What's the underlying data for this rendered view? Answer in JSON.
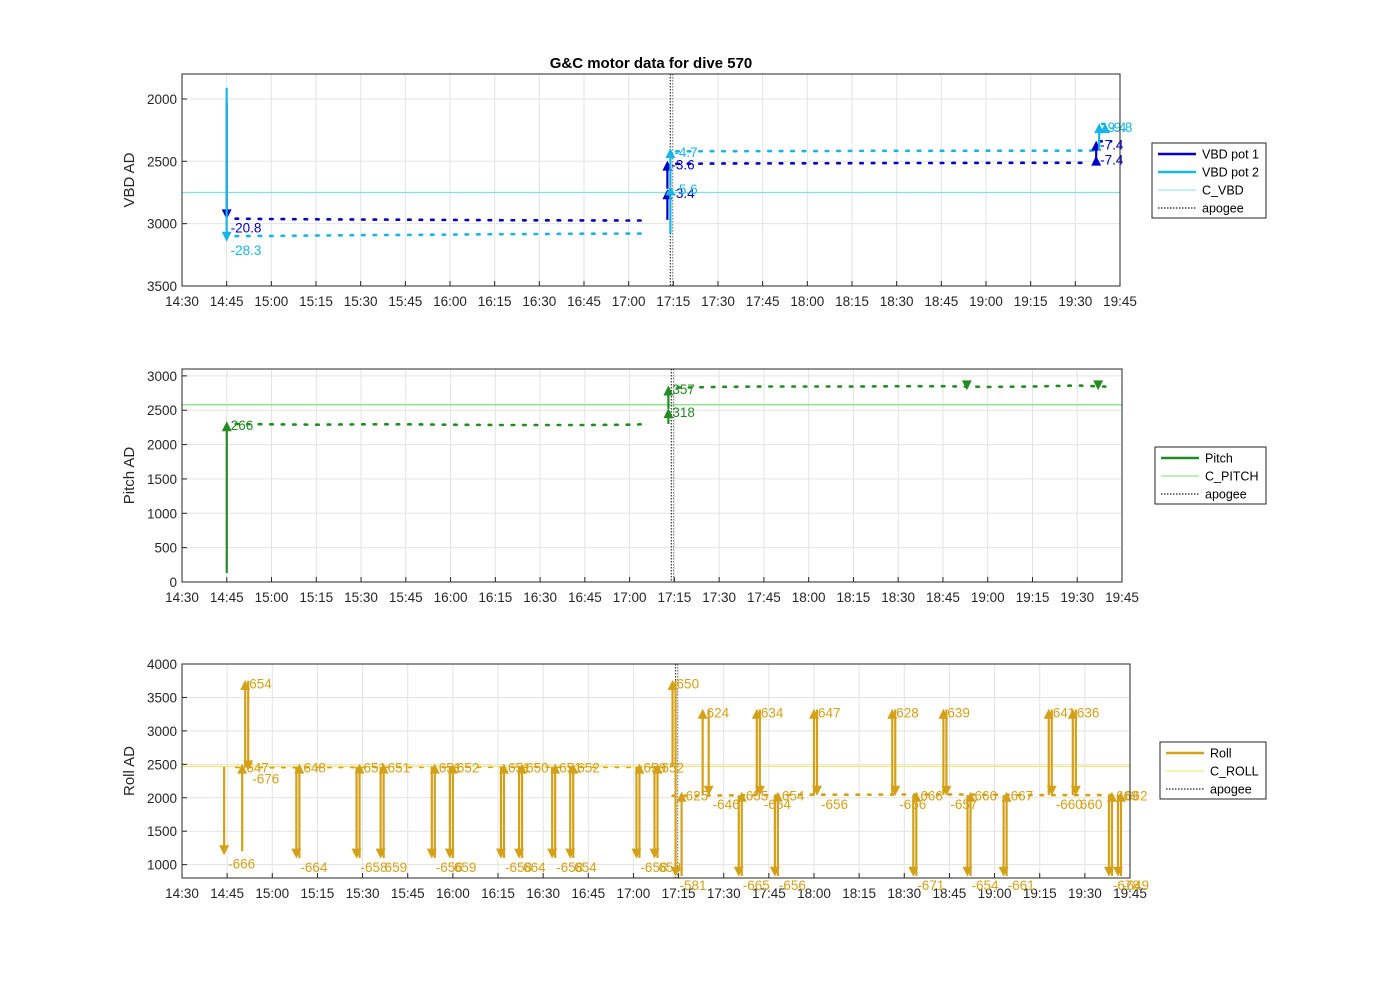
{
  "chart_data": [
    {
      "type": "line",
      "title": "G&C motor data for dive 570",
      "ylabel": "VBD AD",
      "xlabel": "",
      "y_reversed": true,
      "ylim": [
        1800,
        3500
      ],
      "xlim": [
        "14:30",
        "19:45"
      ],
      "x_ticks": [
        "14:30",
        "14:45",
        "15:00",
        "15:15",
        "15:30",
        "15:45",
        "16:00",
        "16:15",
        "16:30",
        "16:45",
        "17:00",
        "17:15",
        "17:30",
        "17:45",
        "18:00",
        "18:15",
        "18:30",
        "18:45",
        "19:00",
        "19:15",
        "19:30",
        "19:45"
      ],
      "y_ticks": [
        "2000",
        "2500",
        "3000",
        "3500"
      ],
      "grid": true,
      "legend_position": "right",
      "colors": {
        "VBD pot 1": "#0000c8",
        "VBD pot 2": "#19b4e6",
        "C_VBD": "#7fe0ea",
        "apogee": "#555555"
      },
      "series": [
        {
          "name": "VBD pot 1",
          "style": "dotted",
          "x": [
            "14:48",
            "15:00",
            "15:15",
            "15:30",
            "15:45",
            "16:00",
            "16:15",
            "16:30",
            "16:45",
            "17:00",
            "17:04"
          ],
          "y": [
            2960,
            2963,
            2965,
            2967,
            2968,
            2970,
            2972,
            2973,
            2974,
            2975,
            2975
          ]
        },
        {
          "name": "VBD pot 1",
          "style": "dotted",
          "x": [
            "17:16",
            "17:30",
            "17:45",
            "18:00",
            "18:15",
            "18:30",
            "18:45",
            "19:00",
            "19:15",
            "19:30",
            "19:35"
          ],
          "y": [
            2520,
            2518,
            2517,
            2516,
            2515,
            2514,
            2514,
            2513,
            2512,
            2512,
            2512
          ]
        },
        {
          "name": "VBD pot 1",
          "style": "dotted",
          "x": [
            "19:38",
            "19:42"
          ],
          "y": [
            2340,
            2340
          ]
        },
        {
          "name": "VBD pot 2",
          "style": "dotted",
          "x": [
            "14:48",
            "15:00",
            "15:15",
            "15:30",
            "15:45",
            "16:00",
            "16:15",
            "16:30",
            "16:45",
            "17:00",
            "17:04"
          ],
          "y": [
            3100,
            3098,
            3095,
            3092,
            3090,
            3088,
            3085,
            3083,
            3081,
            3080,
            3080
          ]
        },
        {
          "name": "VBD pot 2",
          "style": "dotted",
          "x": [
            "17:16",
            "17:30",
            "17:45",
            "18:00",
            "18:15",
            "18:30",
            "18:45",
            "19:00",
            "19:15",
            "19:30",
            "19:36"
          ],
          "y": [
            2420,
            2419,
            2418,
            2418,
            2417,
            2416,
            2416,
            2415,
            2415,
            2414,
            2414
          ]
        },
        {
          "name": "VBD pot 2",
          "style": "dotted",
          "x": [
            "19:39",
            "19:42"
          ],
          "y": [
            2200,
            2200
          ]
        },
        {
          "name": "C_VBD",
          "style": "hline",
          "y": [
            2750
          ]
        },
        {
          "name": "apogee",
          "style": "vline",
          "x": [
            "17:14"
          ]
        }
      ],
      "moves": [
        {
          "series": "VBD pot 1",
          "x": "14:45",
          "from": 2030,
          "to": 2960,
          "label": "-20.8"
        },
        {
          "series": "VBD pot 2",
          "x": "14:45",
          "from": 1910,
          "to": 3140,
          "label": "-28.3"
        },
        {
          "series": "VBD pot 1",
          "x": "17:13",
          "from": 2970,
          "to": 2730,
          "label": "-3.4"
        },
        {
          "series": "VBD pot 1",
          "x": "17:13",
          "from": 2720,
          "to": 2500,
          "label": "-3.6"
        },
        {
          "series": "VBD pot 2",
          "x": "17:14",
          "from": 3080,
          "to": 2700,
          "label": "-5.6"
        },
        {
          "series": "VBD pot 2",
          "x": "17:14",
          "from": 2700,
          "to": 2400,
          "label": "-4.7"
        },
        {
          "series": "VBD pot 1",
          "x": "19:37",
          "from": 2512,
          "to": 2340,
          "label": "-7.4"
        },
        {
          "series": "VBD pot 1",
          "x": "19:37",
          "from": 2512,
          "to": 2460,
          "label": "-7.4"
        },
        {
          "series": "VBD pot 2",
          "x": "19:38",
          "from": 2414,
          "to": 2200,
          "label": "-9.4"
        },
        {
          "series": "VBD pot 2",
          "x": "19:40",
          "from": 2240,
          "to": 2200,
          "label": "-9.8"
        }
      ]
    },
    {
      "type": "line",
      "title": "",
      "ylabel": "Pitch AD",
      "xlabel": "",
      "ylim": [
        0,
        3100
      ],
      "xlim": [
        "14:30",
        "19:45"
      ],
      "x_ticks": [
        "14:30",
        "14:45",
        "15:00",
        "15:15",
        "15:30",
        "15:45",
        "16:00",
        "16:15",
        "16:30",
        "16:45",
        "17:00",
        "17:15",
        "17:30",
        "17:45",
        "18:00",
        "18:15",
        "18:30",
        "18:45",
        "19:00",
        "19:15",
        "19:30",
        "19:45"
      ],
      "y_ticks": [
        "0",
        "500",
        "1000",
        "1500",
        "2000",
        "2500",
        "3000"
      ],
      "grid": true,
      "legend_position": "right",
      "colors": {
        "Pitch": "#228b22",
        "C_PITCH": "#7ee07e",
        "apogee": "#555555"
      },
      "series": [
        {
          "name": "Pitch",
          "style": "dotted",
          "x": [
            "14:48",
            "15:00",
            "15:15",
            "15:30",
            "15:45",
            "16:00",
            "16:15",
            "16:30",
            "16:45",
            "17:00",
            "17:04"
          ],
          "y": [
            2300,
            2295,
            2290,
            2295,
            2295,
            2290,
            2285,
            2285,
            2285,
            2290,
            2295
          ]
        },
        {
          "name": "Pitch",
          "style": "dotted",
          "x": [
            "17:16",
            "17:30",
            "17:45",
            "18:00",
            "18:15",
            "18:30",
            "18:45",
            "19:00",
            "19:15",
            "19:30",
            "19:42"
          ],
          "y": [
            2830,
            2840,
            2845,
            2845,
            2845,
            2850,
            2850,
            2840,
            2845,
            2860,
            2840
          ]
        },
        {
          "name": "C_PITCH",
          "style": "hline",
          "y": [
            2580
          ]
        },
        {
          "name": "apogee",
          "style": "vline",
          "x": [
            "17:14"
          ]
        }
      ],
      "moves": [
        {
          "series": "Pitch",
          "x": "14:45",
          "from": 130,
          "to": 2330,
          "label": "266"
        },
        {
          "series": "Pitch",
          "x": "17:13",
          "from": 2300,
          "to": 2520,
          "label": "318"
        },
        {
          "series": "Pitch",
          "x": "17:13",
          "from": 2520,
          "to": 2850,
          "label": "357"
        },
        {
          "series": "Pitch",
          "x": "18:53",
          "from": 2860,
          "to": 2800,
          "label": ""
        },
        {
          "series": "Pitch",
          "x": "19:37",
          "from": 2860,
          "to": 2800,
          "label": ""
        }
      ]
    },
    {
      "type": "line",
      "title": "",
      "ylabel": "Roll AD",
      "xlabel": "",
      "ylim": [
        800,
        4000
      ],
      "xlim": [
        "14:30",
        "19:45"
      ],
      "x_ticks": [
        "14:30",
        "14:45",
        "15:00",
        "15:15",
        "15:30",
        "15:45",
        "16:00",
        "16:15",
        "16:30",
        "16:45",
        "17:00",
        "17:15",
        "17:30",
        "17:45",
        "18:00",
        "18:15",
        "18:30",
        "18:45",
        "19:00",
        "19:15",
        "19:30",
        "19:45"
      ],
      "y_ticks": [
        "1000",
        "1500",
        "2000",
        "2500",
        "3000",
        "3500",
        "4000"
      ],
      "grid": true,
      "legend_position": "right",
      "colors": {
        "Roll": "#d4a017",
        "C_ROLL": "#f2e45a",
        "apogee": "#555555"
      },
      "series": [
        {
          "name": "Roll",
          "style": "dotted",
          "x": [
            "14:48",
            "15:00",
            "15:15",
            "15:30",
            "15:45",
            "16:00",
            "16:15",
            "16:30",
            "16:45",
            "17:00",
            "17:10"
          ],
          "y": [
            2460,
            2455,
            2458,
            2460,
            2462,
            2462,
            2463,
            2463,
            2462,
            2462,
            2460
          ]
        },
        {
          "name": "Roll",
          "style": "dotted",
          "x": [
            "17:13",
            "17:30",
            "17:45",
            "18:00",
            "18:15",
            "18:30",
            "18:45",
            "19:00",
            "19:15",
            "19:30",
            "19:42"
          ],
          "y": [
            2030,
            2035,
            2040,
            2045,
            2045,
            2048,
            2050,
            2045,
            2040,
            2040,
            2040
          ]
        },
        {
          "name": "C_ROLL",
          "style": "hline",
          "y": [
            2470
          ]
        },
        {
          "name": "apogee",
          "style": "vline",
          "x": [
            "17:14"
          ]
        }
      ],
      "moves": [
        {
          "x": "14:44",
          "from": 2460,
          "to": 1150,
          "label": "-666"
        },
        {
          "x": "14:50",
          "from": 1200,
          "to": 2500,
          "label": "647"
        },
        {
          "x": "14:51",
          "from": 2450,
          "to": 3750,
          "label": "654"
        },
        {
          "x": "14:52",
          "from": 3750,
          "to": 2420,
          "label": "-676"
        },
        {
          "x": "15:08",
          "from": 2460,
          "to": 1100,
          "label": "-664"
        },
        {
          "x": "15:09",
          "from": 1100,
          "to": 2500,
          "label": "648"
        },
        {
          "x": "15:28",
          "from": 2460,
          "to": 1100,
          "label": "-658"
        },
        {
          "x": "15:29",
          "from": 1100,
          "to": 2500,
          "label": "651"
        },
        {
          "x": "15:36",
          "from": 2460,
          "to": 1100,
          "label": "659"
        },
        {
          "x": "15:37",
          "from": 1100,
          "to": 2500,
          "label": "651"
        },
        {
          "x": "15:53",
          "from": 2460,
          "to": 1100,
          "label": "-656"
        },
        {
          "x": "15:54",
          "from": 1100,
          "to": 2500,
          "label": "651"
        },
        {
          "x": "15:59",
          "from": 2460,
          "to": 1100,
          "label": "659"
        },
        {
          "x": "16:00",
          "from": 1100,
          "to": 2500,
          "label": "652"
        },
        {
          "x": "16:16",
          "from": 2460,
          "to": 1100,
          "label": "-658"
        },
        {
          "x": "16:17",
          "from": 1100,
          "to": 2500,
          "label": "651"
        },
        {
          "x": "16:22",
          "from": 2460,
          "to": 1100,
          "label": "664"
        },
        {
          "x": "16:23",
          "from": 1100,
          "to": 2500,
          "label": "650"
        },
        {
          "x": "16:33",
          "from": 2460,
          "to": 1100,
          "label": "-658"
        },
        {
          "x": "16:34",
          "from": 1100,
          "to": 2500,
          "label": "651"
        },
        {
          "x": "16:39",
          "from": 2460,
          "to": 1100,
          "label": "654"
        },
        {
          "x": "16:40",
          "from": 1100,
          "to": 2500,
          "label": "652"
        },
        {
          "x": "17:01",
          "from": 2460,
          "to": 1100,
          "label": "-658"
        },
        {
          "x": "17:02",
          "from": 1100,
          "to": 2500,
          "label": "650"
        },
        {
          "x": "17:07",
          "from": 2460,
          "to": 1100,
          "label": "658"
        },
        {
          "x": "17:08",
          "from": 1100,
          "to": 2500,
          "label": "652"
        },
        {
          "x": "17:13",
          "from": 2460,
          "to": 3750,
          "label": "650"
        },
        {
          "x": "17:14",
          "from": 3750,
          "to": 830,
          "label": "-581"
        },
        {
          "x": "17:16",
          "from": 830,
          "to": 2080,
          "label": "625"
        },
        {
          "x": "17:23",
          "from": 2040,
          "to": 3320,
          "label": "624"
        },
        {
          "x": "17:25",
          "from": 3320,
          "to": 2040,
          "label": "-646"
        },
        {
          "x": "17:35",
          "from": 2040,
          "to": 830,
          "label": "-665"
        },
        {
          "x": "17:36",
          "from": 830,
          "to": 2080,
          "label": "655"
        },
        {
          "x": "17:41",
          "from": 2040,
          "to": 3320,
          "label": "634"
        },
        {
          "x": "17:42",
          "from": 3320,
          "to": 2040,
          "label": "-654"
        },
        {
          "x": "17:47",
          "from": 2040,
          "to": 830,
          "label": "-656"
        },
        {
          "x": "17:48",
          "from": 830,
          "to": 2080,
          "label": "654"
        },
        {
          "x": "18:00",
          "from": 2040,
          "to": 3320,
          "label": "647"
        },
        {
          "x": "18:01",
          "from": 3320,
          "to": 2040,
          "label": "-656"
        },
        {
          "x": "18:26",
          "from": 2040,
          "to": 3320,
          "label": "628"
        },
        {
          "x": "18:27",
          "from": 3320,
          "to": 2040,
          "label": "-656"
        },
        {
          "x": "18:33",
          "from": 2040,
          "to": 830,
          "label": "-671"
        },
        {
          "x": "18:34",
          "from": 830,
          "to": 2080,
          "label": "666"
        },
        {
          "x": "18:43",
          "from": 2040,
          "to": 3320,
          "label": "639"
        },
        {
          "x": "18:44",
          "from": 3320,
          "to": 2040,
          "label": "-657"
        },
        {
          "x": "18:51",
          "from": 2040,
          "to": 830,
          "label": "-654"
        },
        {
          "x": "18:52",
          "from": 830,
          "to": 2080,
          "label": "666"
        },
        {
          "x": "19:03",
          "from": 2040,
          "to": 830,
          "label": "-661"
        },
        {
          "x": "19:04",
          "from": 830,
          "to": 2080,
          "label": "667"
        },
        {
          "x": "19:18",
          "from": 2040,
          "to": 3320,
          "label": "641"
        },
        {
          "x": "19:19",
          "from": 3320,
          "to": 2040,
          "label": "-660"
        },
        {
          "x": "19:26",
          "from": 2040,
          "to": 3320,
          "label": "636"
        },
        {
          "x": "19:27",
          "from": 3320,
          "to": 2040,
          "label": "660"
        },
        {
          "x": "19:38",
          "from": 2040,
          "to": 830,
          "label": "-678"
        },
        {
          "x": "19:39",
          "from": 830,
          "to": 2080,
          "label": "669"
        },
        {
          "x": "19:41",
          "from": 2040,
          "to": 830,
          "label": "-649"
        },
        {
          "x": "19:42",
          "from": 830,
          "to": 2080,
          "label": "662"
        }
      ]
    }
  ],
  "legends": [
    {
      "entries": [
        {
          "label": "VBD pot 1",
          "color": "#0000c8",
          "style": "thick"
        },
        {
          "label": "VBD pot 2",
          "color": "#19b4e6",
          "style": "thick"
        },
        {
          "label": "C_VBD",
          "color": "#7fe0ea",
          "style": "thin"
        },
        {
          "label": "apogee",
          "color": "#444444",
          "style": "dotted"
        }
      ]
    },
    {
      "entries": [
        {
          "label": "Pitch",
          "color": "#228b22",
          "style": "thick"
        },
        {
          "label": "C_PITCH",
          "color": "#7ee07e",
          "style": "thin"
        },
        {
          "label": "apogee",
          "color": "#444444",
          "style": "dotted"
        }
      ]
    },
    {
      "entries": [
        {
          "label": "Roll",
          "color": "#d4a017",
          "style": "thick"
        },
        {
          "label": "C_ROLL",
          "color": "#f2e45a",
          "style": "thin"
        },
        {
          "label": "apogee",
          "color": "#444444",
          "style": "dotted"
        }
      ]
    }
  ]
}
